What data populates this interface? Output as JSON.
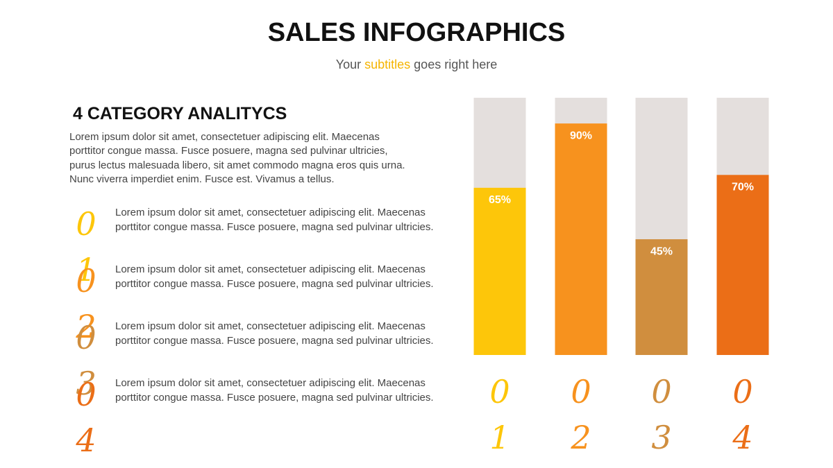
{
  "header": {
    "title": "SALES INFOGRAPHICS",
    "subtitle_before": "Your ",
    "subtitle_highlight": "subtitles",
    "subtitle_after": " goes right here"
  },
  "section": {
    "heading": "4 CATEGORY ANALITYCS",
    "body": "Lorem ipsum dolor sit amet, consectetuer adipiscing elit. Maecenas porttitor congue massa. Fusce posuere, magna sed pulvinar ultricies, purus lectus malesuada libero, sit amet commodo magna eros quis urna. Nunc viverra imperdiet enim. Fusce est. Vivamus a tellus."
  },
  "items": [
    {
      "number": "01",
      "text": "Lorem ipsum dolor sit amet, consectetuer adipiscing elit. Maecenas porttitor congue massa. Fusce posuere, magna sed pulvinar ultricies."
    },
    {
      "number": "02",
      "text": "Lorem ipsum dolor sit amet, consectetuer adipiscing elit. Maecenas porttitor congue massa. Fusce posuere, magna sed pulvinar ultricies."
    },
    {
      "number": "03",
      "text": "Lorem ipsum dolor sit amet, consectetuer adipiscing elit. Maecenas porttitor congue massa. Fusce posuere, magna sed pulvinar ultricies."
    },
    {
      "number": "04",
      "text": "Lorem ipsum dolor sit amet, consectetuer adipiscing elit. Maecenas porttitor congue massa. Fusce posuere, magna sed pulvinar ultricies."
    }
  ],
  "chart_data": {
    "type": "bar",
    "categories": [
      "01",
      "02",
      "03",
      "04"
    ],
    "values": [
      65,
      90,
      45,
      70
    ],
    "value_labels": [
      "65%",
      "90%",
      "45%",
      "70%"
    ],
    "colors": [
      "#fdc60a",
      "#f7921e",
      "#d08e3e",
      "#eb6e17"
    ],
    "track_color": "#e4dfdd",
    "ylim": [
      0,
      100
    ]
  }
}
